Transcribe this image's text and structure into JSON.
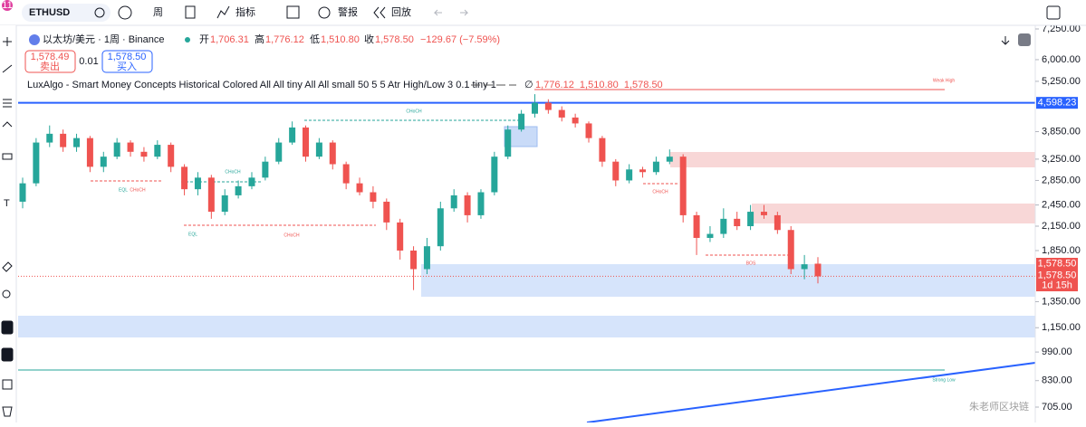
{
  "toolbar": {
    "badge": "11",
    "symbol": "ETHUSD",
    "interval": "周",
    "indicators": "指标",
    "alerts": "警报",
    "replay": "回放"
  },
  "legend": {
    "symbol_title": "以太坊/美元 · 1周 · Binance",
    "open_label": "开",
    "open": "1,706.31",
    "high_label": "高",
    "high": "1,776.12",
    "low_label": "低",
    "low": "1,510.80",
    "close_label": "收",
    "close": "1,578.50",
    "change": "−129.67 (−7.59%)"
  },
  "trade": {
    "sell_price": "1,578.49",
    "sell_label": "卖出",
    "spread": "0.01",
    "buy_price": "1,578.50",
    "buy_label": "买入"
  },
  "indicator": {
    "name": "LuxAlgo - Smart Money Concepts Historical Colored All All tiny All All small 50 5 5 Atr High/Low 3 0.1 tiny 1",
    "symbol": "∅",
    "values": "1,776.12  1,510.80  1,578.50"
  },
  "annotations": [
    "CHoCH",
    "EQL",
    "CHoCH",
    "CHoCH",
    "EQL",
    "CHoCH",
    "CHoCH",
    "BOS",
    "Weak High",
    "Strong Low"
  ],
  "price_tags": [
    "1,578.50",
    "1,578.50",
    "1d 15h"
  ],
  "watermark": "朱老师区块链",
  "chart_data": {
    "type": "candlestick",
    "log_scale": true,
    "ylim": [
      705,
      7250
    ],
    "up_color": "#26a69a",
    "down_color": "#ef5350",
    "marked_price": {
      "value": 4598.23,
      "label": "4,598.23"
    },
    "yticks": [
      {
        "value": 7250,
        "label": "7,250.00"
      },
      {
        "value": 6000,
        "label": "6,000.00"
      },
      {
        "value": 5250,
        "label": "5,250.00"
      },
      {
        "value": 3850,
        "label": "3,850.00"
      },
      {
        "value": 3250,
        "label": "3,250.00"
      },
      {
        "value": 2850,
        "label": "2,850.00"
      },
      {
        "value": 2450,
        "label": "2,450.00"
      },
      {
        "value": 2150,
        "label": "2,150.00"
      },
      {
        "value": 1850,
        "label": "1,850.00"
      },
      {
        "value": 1350,
        "label": "1,350.00"
      },
      {
        "value": 1150,
        "label": "1,150.00"
      },
      {
        "value": 990,
        "label": "990.00"
      },
      {
        "value": 830,
        "label": "830.00"
      },
      {
        "value": 705,
        "label": "705.00"
      }
    ],
    "candles": [
      [
        2500,
        2900,
        2400,
        2800
      ],
      [
        2800,
        3700,
        2750,
        3600
      ],
      [
        3600,
        4000,
        3500,
        3800
      ],
      [
        3800,
        3900,
        3400,
        3500
      ],
      [
        3500,
        3800,
        3400,
        3700
      ],
      [
        3700,
        3750,
        3000,
        3100
      ],
      [
        3100,
        3400,
        3000,
        3300
      ],
      [
        3300,
        3700,
        3250,
        3600
      ],
      [
        3600,
        3650,
        3300,
        3400
      ],
      [
        3400,
        3500,
        3200,
        3300
      ],
      [
        3300,
        3650,
        3250,
        3550
      ],
      [
        3550,
        3600,
        3000,
        3100
      ],
      [
        3100,
        3150,
        2600,
        2700
      ],
      [
        2700,
        3000,
        2600,
        2900
      ],
      [
        2900,
        2950,
        2250,
        2350
      ],
      [
        2350,
        2700,
        2300,
        2600
      ],
      [
        2600,
        2850,
        2550,
        2750
      ],
      [
        2750,
        3000,
        2700,
        2900
      ],
      [
        2900,
        3300,
        2850,
        3200
      ],
      [
        3200,
        3700,
        3150,
        3600
      ],
      [
        3600,
        4100,
        3550,
        3950
      ],
      [
        3950,
        4000,
        3200,
        3300
      ],
      [
        3300,
        3700,
        3250,
        3600
      ],
      [
        3600,
        3650,
        3050,
        3150
      ],
      [
        3150,
        3200,
        2700,
        2800
      ],
      [
        2800,
        2900,
        2600,
        2650
      ],
      [
        2650,
        2750,
        2400,
        2500
      ],
      [
        2500,
        2550,
        2100,
        2200
      ],
      [
        2200,
        2250,
        1750,
        1850
      ],
      [
        1850,
        1900,
        1450,
        1650
      ],
      [
        1650,
        2000,
        1600,
        1900
      ],
      [
        1900,
        2500,
        1850,
        2400
      ],
      [
        2400,
        2700,
        2350,
        2600
      ],
      [
        2600,
        2650,
        2200,
        2300
      ],
      [
        2300,
        2700,
        2250,
        2650
      ],
      [
        2650,
        3400,
        2600,
        3300
      ],
      [
        3300,
        4000,
        3250,
        3900
      ],
      [
        3900,
        4400,
        3850,
        4300
      ],
      [
        4300,
        4850,
        4200,
        4600
      ],
      [
        4600,
        4700,
        4300,
        4400
      ],
      [
        4400,
        4500,
        4100,
        4200
      ],
      [
        4200,
        4300,
        3950,
        4050
      ],
      [
        4050,
        4100,
        3600,
        3700
      ],
      [
        3700,
        3750,
        3100,
        3200
      ],
      [
        3200,
        3250,
        2750,
        2850
      ],
      [
        2850,
        3150,
        2800,
        3050
      ],
      [
        3050,
        3100,
        2900,
        3000
      ],
      [
        3000,
        3300,
        2950,
        3200
      ],
      [
        3200,
        3450,
        3150,
        3300
      ],
      [
        3300,
        3350,
        2200,
        2300
      ],
      [
        2300,
        2350,
        1800,
        2000
      ],
      [
        2000,
        2150,
        1950,
        2050
      ],
      [
        2050,
        2400,
        2000,
        2250
      ],
      [
        2250,
        2350,
        2100,
        2150
      ],
      [
        2150,
        2450,
        2100,
        2350
      ],
      [
        2350,
        2450,
        2250,
        2300
      ],
      [
        2300,
        2350,
        2050,
        2100
      ],
      [
        2100,
        2150,
        1600,
        1650
      ],
      [
        1650,
        1800,
        1550,
        1700
      ],
      [
        1706.31,
        1776.12,
        1510.8,
        1578.5
      ]
    ]
  }
}
